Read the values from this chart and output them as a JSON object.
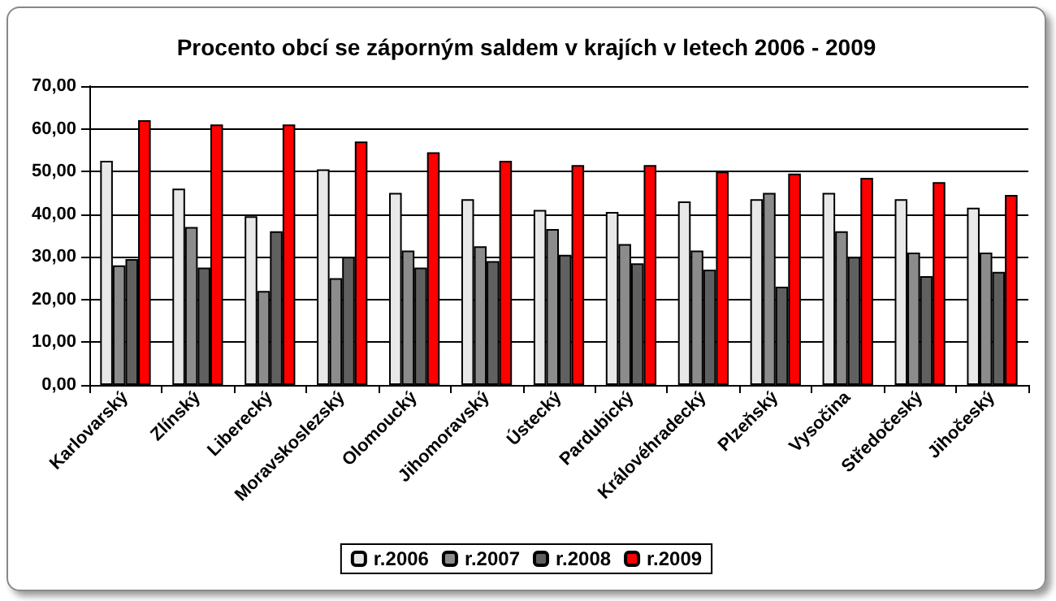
{
  "chart_data": {
    "type": "bar",
    "title": "Procento obcí se záporným saldem v krajích v letech 2006 - 2009",
    "categories": [
      "Karlovarský",
      "Zlínský",
      "Liberecký",
      "Moravskoslezský",
      "Olomoucký",
      "Jihomoravský",
      "Ústecký",
      "Pardubický",
      "Královéhradecký",
      "Plzeňský",
      "Vysočina",
      "Středočeský",
      "Jihočeský"
    ],
    "series": [
      {
        "name": "r.2006",
        "color": "#e8e8e8",
        "values": [
          52.5,
          46.0,
          39.5,
          50.5,
          45.0,
          43.5,
          41.0,
          40.5,
          43.0,
          43.5,
          45.0,
          43.5,
          41.5
        ]
      },
      {
        "name": "r.2007",
        "color": "#8c8c8c",
        "values": [
          28.0,
          37.0,
          22.0,
          25.0,
          31.5,
          32.5,
          36.5,
          33.0,
          31.5,
          45.0,
          36.0,
          31.0,
          31.0
        ]
      },
      {
        "name": "r.2008",
        "color": "#606060",
        "values": [
          29.5,
          27.5,
          36.0,
          30.0,
          27.5,
          29.0,
          30.5,
          28.5,
          27.0,
          23.0,
          30.0,
          25.5,
          26.5
        ]
      },
      {
        "name": "r.2009",
        "color": "#ff0000",
        "values": [
          62.0,
          61.0,
          61.0,
          57.0,
          54.5,
          52.5,
          51.5,
          51.5,
          50.0,
          49.5,
          48.5,
          47.5,
          44.5
        ]
      }
    ],
    "ylim": [
      0,
      70
    ],
    "yticks": [
      {
        "value": 0,
        "label": "0,00"
      },
      {
        "value": 10,
        "label": "10,00"
      },
      {
        "value": 20,
        "label": "20,00"
      },
      {
        "value": 30,
        "label": "30,00"
      },
      {
        "value": 40,
        "label": "40,00"
      },
      {
        "value": 50,
        "label": "50,00"
      },
      {
        "value": 60,
        "label": "60,00"
      },
      {
        "value": 70,
        "label": "70,00"
      }
    ],
    "grid": "y",
    "legend": "bottom"
  }
}
